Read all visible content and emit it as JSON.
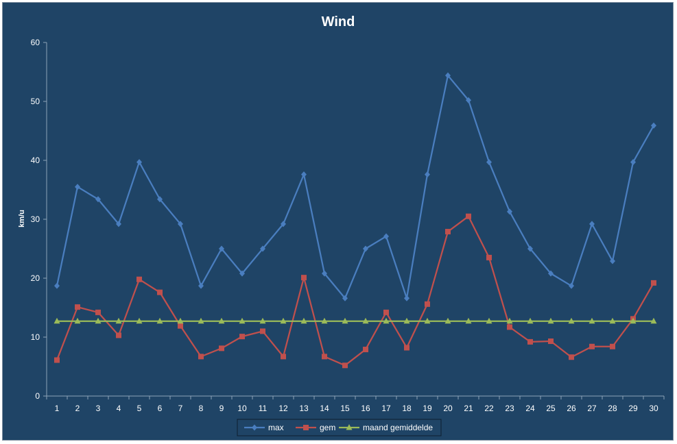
{
  "chart_data": {
    "type": "line",
    "title": "Wind",
    "xlabel": "",
    "ylabel": "km/u",
    "ylim": [
      0,
      60
    ],
    "yticks": [
      0,
      10,
      20,
      30,
      40,
      50,
      60
    ],
    "categories": [
      "1",
      "2",
      "3",
      "4",
      "5",
      "6",
      "7",
      "8",
      "9",
      "10",
      "11",
      "12",
      "13",
      "14",
      "15",
      "16",
      "17",
      "18",
      "19",
      "20",
      "21",
      "22",
      "23",
      "24",
      "25",
      "26",
      "27",
      "28",
      "29",
      "30"
    ],
    "grid": false,
    "legend_position": "bottom",
    "series": [
      {
        "name": "max",
        "color": "#4a7ebf",
        "marker": "diamond",
        "values": [
          18.7,
          35.5,
          33.4,
          29.2,
          39.7,
          33.4,
          29.2,
          18.7,
          25.0,
          20.8,
          25.0,
          29.2,
          37.6,
          20.8,
          16.6,
          25.0,
          27.1,
          16.6,
          37.6,
          54.4,
          50.2,
          39.7,
          31.3,
          25.0,
          20.8,
          18.7,
          29.2,
          22.9,
          39.7,
          45.9
        ]
      },
      {
        "name": "gem",
        "color": "#c0504d",
        "marker": "square",
        "values": [
          6.1,
          15.1,
          14.2,
          10.3,
          19.8,
          17.6,
          11.9,
          6.7,
          8.1,
          10.1,
          11.0,
          6.7,
          20.1,
          6.7,
          5.2,
          7.9,
          14.2,
          8.2,
          15.6,
          27.9,
          30.5,
          23.5,
          11.7,
          9.2,
          9.3,
          6.6,
          8.4,
          8.4,
          13.1,
          19.2
        ]
      },
      {
        "name": "maand gemiddelde",
        "color": "#9bbb59",
        "marker": "triangle",
        "values": [
          12.7,
          12.7,
          12.7,
          12.7,
          12.7,
          12.7,
          12.7,
          12.7,
          12.7,
          12.7,
          12.7,
          12.7,
          12.7,
          12.7,
          12.7,
          12.7,
          12.7,
          12.7,
          12.7,
          12.7,
          12.7,
          12.7,
          12.7,
          12.7,
          12.7,
          12.7,
          12.7,
          12.7,
          12.7,
          12.7
        ]
      }
    ]
  }
}
